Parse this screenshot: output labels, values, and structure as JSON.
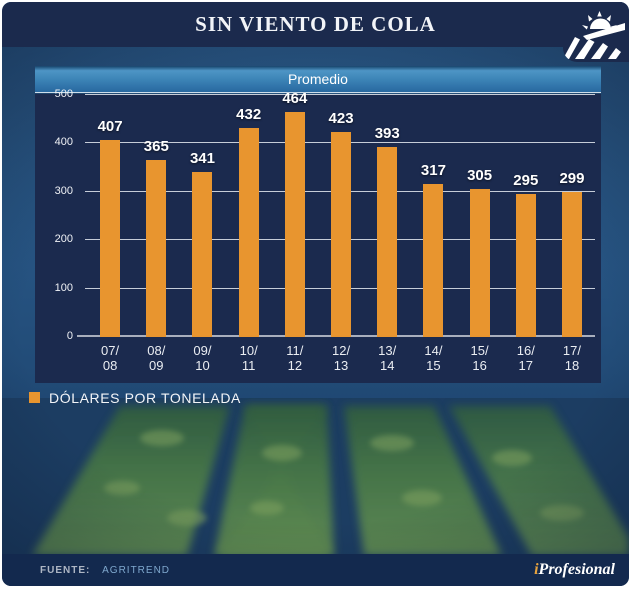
{
  "header": {
    "title": "SIN VIENTO DE COLA"
  },
  "banner": {
    "label": "Promedio"
  },
  "legend": {
    "label": "DÓLARES POR TONELADA"
  },
  "footer": {
    "source_label": "FUENTE:",
    "source_value": "AGRITREND",
    "brand_i": "i",
    "brand_rest": "Profesional"
  },
  "colors": {
    "bar_orange": "#E8952F",
    "panel_navy": "#1B2A4E",
    "header_navy": "#1B2A4D",
    "footer_navy": "#13294E",
    "steel_blue_bg": "#265381",
    "banner_top": "#4E95C5",
    "banner_bottom": "#2868A0",
    "gridline": "#DADFE8",
    "axis": "#A9AFBD",
    "source_value_blue": "#7FA8CE",
    "brand_i_gold": "#E8A33D"
  },
  "chart_data": {
    "type": "bar",
    "title": "SIN VIENTO DE COLA",
    "series_label": "Promedio",
    "categories": [
      "07/08",
      "08/09",
      "09/10",
      "10/11",
      "11/12",
      "12/13",
      "13/14",
      "14/15",
      "15/16",
      "16/17",
      "17/18"
    ],
    "values": [
      407,
      365,
      341,
      432,
      464,
      423,
      393,
      317,
      305,
      295,
      299
    ],
    "xlabel": "",
    "ylabel": "",
    "ylim": [
      0,
      500
    ],
    "yticks": [
      0,
      100,
      200,
      300,
      400,
      500
    ],
    "grid": true,
    "bar_color": "#E8952F",
    "legend": "DÓLARES POR TONELADA",
    "legend_position": "bottom-left"
  }
}
